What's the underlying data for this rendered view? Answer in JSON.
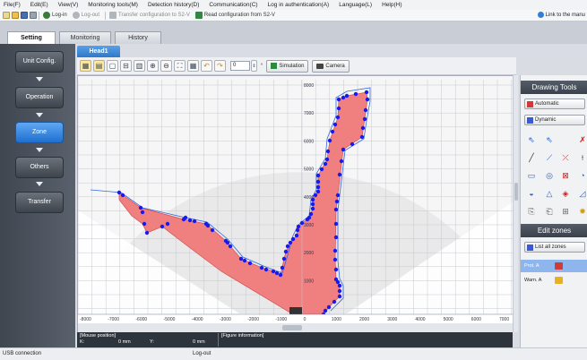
{
  "menu": [
    "File(F)",
    "Edit(E)",
    "View(V)",
    "Monitoring tools(M)",
    "Detection history(D)",
    "Communication(C)",
    "Log in authentication(A)",
    "Language(L)",
    "Help(H)"
  ],
  "toolbar": {
    "login": "Log-in",
    "logout": "Log-out",
    "transfer": "Transfer configuration to S2-V",
    "read": "Read configuration from S2-V",
    "link_manual": "Link to the manu"
  },
  "tabs": [
    "Setting",
    "Monitoring",
    "History"
  ],
  "left_nav": {
    "unit_config": "Unit Config.",
    "operation": "Operation",
    "zone": "Zone",
    "others": "Others",
    "transfer": "Transfer"
  },
  "head_tab": "Head1",
  "canvas_toolbar": {
    "zoom_value": "0",
    "zoom_unit": "°",
    "simulation": "Simulation",
    "camera": "Camera"
  },
  "y_axis_labels": [
    "8000",
    "7000",
    "6000",
    "5000",
    "4000",
    "3000",
    "2000",
    "1000"
  ],
  "x_axis_labels": [
    "-8000",
    "-7000",
    "-6000",
    "-5000",
    "-4000",
    "-3000",
    "-2000",
    "-1000",
    "0",
    "1000",
    "2000",
    "3000",
    "4000",
    "5000",
    "6000",
    "7000"
  ],
  "info": {
    "mouse_label": "[Mouse position]",
    "k_label": "K:",
    "x_value": "0  mm",
    "y_label": "Y:",
    "y_value": "0  mm",
    "figure_info": "[Figure information]"
  },
  "right_panel": {
    "drawing_tools": "Drawing Tools",
    "automatic": "Automatic",
    "dynamic": "Dynamic",
    "edit_zones": "Edit zones",
    "list_all_zones": "List all zones",
    "zones": [
      "Prot. A",
      "Warn. A"
    ]
  },
  "status": {
    "connection": "USB connection",
    "login": "Log-out"
  },
  "colors": {
    "zone_fill": "#f08080",
    "zone_points": "#1a1aee",
    "zone_outline": "#3366dd",
    "active_nav": "#2f7fd8"
  }
}
